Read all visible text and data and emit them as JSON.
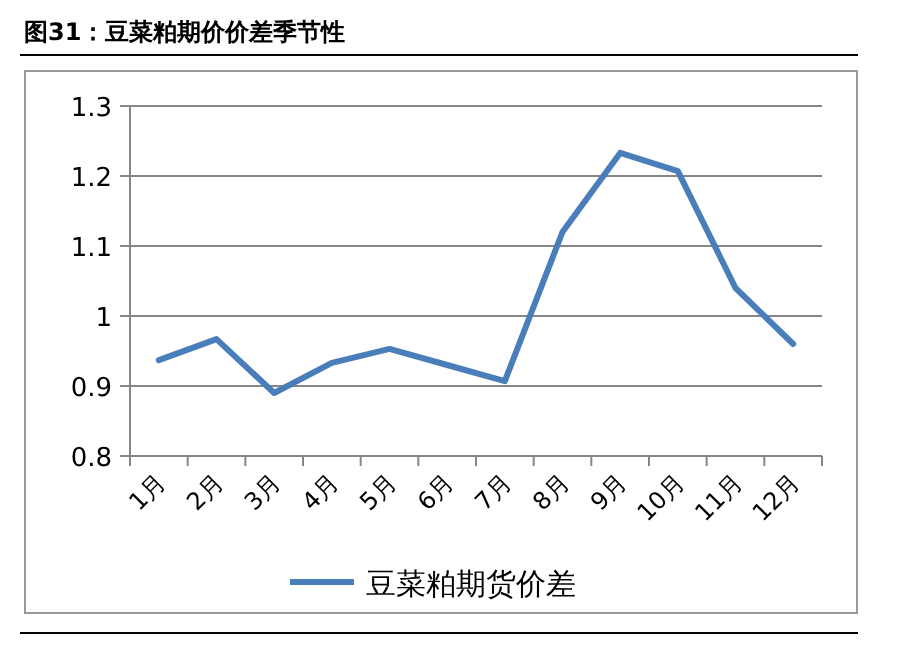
{
  "chart_data": {
    "type": "line",
    "title": "图31：豆菜粕期价价差季节性",
    "categories": [
      "1月",
      "2月",
      "3月",
      "4月",
      "5月",
      "6月",
      "7月",
      "8月",
      "9月",
      "10月",
      "11月",
      "12月"
    ],
    "series": [
      {
        "name": "豆菜粕期货价差",
        "color": "#4a7ebb",
        "values": [
          0.937,
          0.967,
          0.89,
          0.933,
          0.953,
          0.93,
          0.907,
          1.12,
          1.233,
          1.207,
          1.04,
          0.96
        ]
      }
    ],
    "ylim": [
      0.8,
      1.3
    ],
    "yticks": [
      0.8,
      0.9,
      1,
      1.1,
      1.2,
      1.3
    ],
    "grid": "y",
    "legend": "bottom",
    "marker": "none",
    "line_style": "solid"
  }
}
